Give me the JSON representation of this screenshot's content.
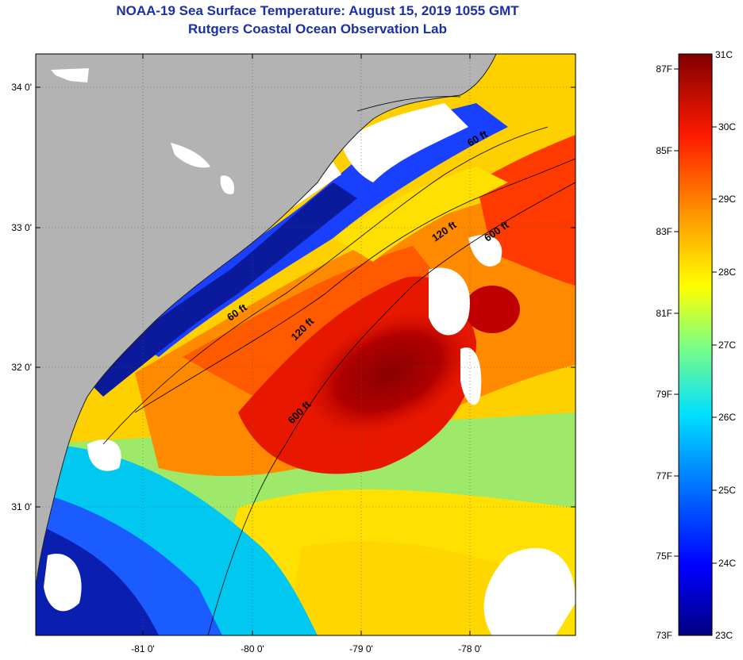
{
  "header": {
    "title": "NOAA-19 Sea Surface Temperature:  August 15, 2019 1055 GMT",
    "subtitle": "Rutgers Coastal Ocean Observation Lab"
  },
  "axes": {
    "lat_ticks": [
      "34 0'",
      "33 0'",
      "32 0'",
      "31 0'"
    ],
    "lon_ticks": [
      "-81 0'",
      "-80 0'",
      "-79 0'",
      "-78 0'"
    ]
  },
  "contour_labels": [
    "60 ft",
    "120 ft",
    "600 ft",
    "120 ft",
    "600 ft",
    "60 ft"
  ],
  "colorbar": {
    "fahrenheit": [
      "87F",
      "85F",
      "83F",
      "81F",
      "79F",
      "77F",
      "75F",
      "73F"
    ],
    "celsius": [
      "31C",
      "30C",
      "29C",
      "28C",
      "27C",
      "26C",
      "25C",
      "24C",
      "23C"
    ],
    "range_c": [
      23,
      31
    ]
  },
  "colors": {
    "land": "#b3b3b3",
    "cloud": "#ffffff",
    "title": "#1b2fa8"
  }
}
